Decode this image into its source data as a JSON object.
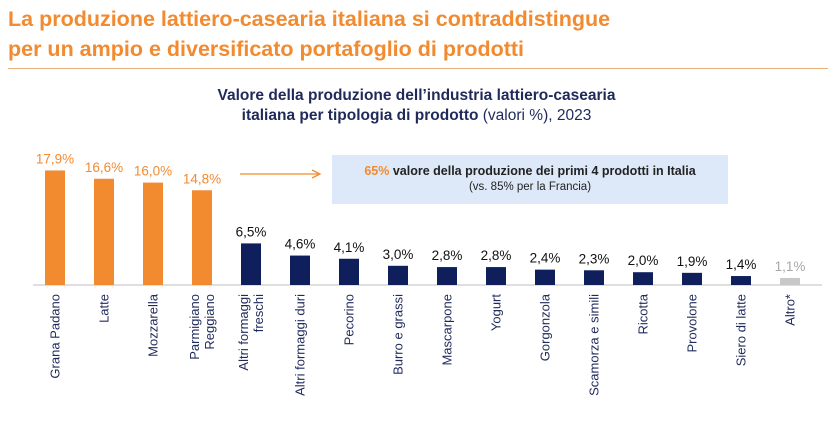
{
  "headline": {
    "line1": "La produzione lattiero-casearia italiana si contraddistingue",
    "line2": "per un ampio  e diversificato portafoglio di prodotti"
  },
  "subtitle": {
    "line1": "Valore della produzione dell’industria lattiero-casearia",
    "line2_bold": "italiana per tipologia di prodotto",
    "line2_rest": " (valori %), 2023"
  },
  "callout": {
    "highlight": "65%",
    "text": " valore della produzione dei primi 4 prodotti in Italia",
    "note": "(vs. 85% per la Francia)"
  },
  "colors": {
    "orange": "#F28A30",
    "navy": "#0F1F5C",
    "grey": "#C8C8C8",
    "label": "#1F2A5A"
  },
  "chart_data": {
    "type": "bar",
    "title": "Valore della produzione dell’industria lattiero-casearia italiana per tipologia di prodotto (valori %), 2023",
    "categories": [
      "Grana Padano",
      "Latte",
      "Mozzarella",
      "Parmigiano Reggiano",
      "Altri formaggi freschi",
      "Altri formaggi duri",
      "Pecorino",
      "Burro e grassi",
      "Mascarpone",
      "Yogurt",
      "Gorgonzola",
      "Scamorza e simili",
      "Ricotta",
      "Provolone",
      "Siero di latte",
      "Altro*"
    ],
    "label_lines": [
      [
        "Grana Padano"
      ],
      [
        "Latte"
      ],
      [
        "Mozzarella"
      ],
      [
        "Parmigiano",
        "Reggiano"
      ],
      [
        "Altri formaggi",
        "freschi"
      ],
      [
        "Altri formaggi duri"
      ],
      [
        "Pecorino"
      ],
      [
        "Burro e grassi"
      ],
      [
        "Mascarpone"
      ],
      [
        "Yogurt"
      ],
      [
        "Gorgonzola"
      ],
      [
        "Scamorza e simili"
      ],
      [
        "Ricotta"
      ],
      [
        "Provolone"
      ],
      [
        "Siero di latte"
      ],
      [
        "Altro*"
      ]
    ],
    "values": [
      17.9,
      16.6,
      16.0,
      14.8,
      6.5,
      4.6,
      4.1,
      3.0,
      2.8,
      2.8,
      2.4,
      2.3,
      2.0,
      1.9,
      1.4,
      1.1
    ],
    "value_labels": [
      "17,9%",
      "16,6%",
      "16,0%",
      "14,8%",
      "6,5%",
      "4,6%",
      "4,1%",
      "3,0%",
      "2,8%",
      "2,8%",
      "2,4%",
      "2,3%",
      "2,0%",
      "1,9%",
      "1,4%",
      "1,1%"
    ],
    "groups": [
      "orange",
      "orange",
      "orange",
      "orange",
      "navy",
      "navy",
      "navy",
      "navy",
      "navy",
      "navy",
      "navy",
      "navy",
      "navy",
      "navy",
      "navy",
      "grey"
    ],
    "ylim": [
      0,
      20
    ],
    "xlabel": "",
    "ylabel": "",
    "grid": false
  }
}
